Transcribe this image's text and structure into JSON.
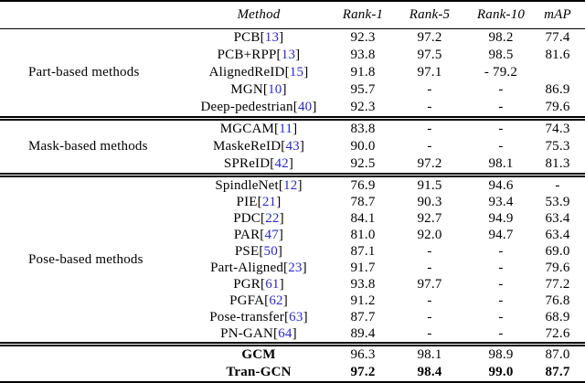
{
  "columns": [
    "Method",
    "Rank-1",
    "Rank-5",
    "Rank-10",
    "mAP"
  ],
  "colors": {
    "citation_link": "#2a2ad2",
    "text": "#000000",
    "background": "#ffffff"
  },
  "groups": [
    {
      "label": "Part-based methods",
      "rows": [
        {
          "method": "PCB",
          "cite": "13",
          "values": [
            "92.3",
            "97.2",
            "98.2",
            "77.4"
          ]
        },
        {
          "method": "PCB+RPP",
          "cite": "13",
          "values": [
            "93.8",
            "97.5",
            "98.5",
            "81.6"
          ]
        },
        {
          "method": "AlignedReID",
          "cite": "15",
          "values": [
            "91.8",
            "97.1",
            "- 79.2",
            ""
          ]
        },
        {
          "method": "MGN",
          "cite": "10",
          "values": [
            "95.7",
            "-",
            "-",
            "86.9"
          ]
        },
        {
          "method": "Deep-pedestrian",
          "cite": "40",
          "values": [
            "92.3",
            "-",
            "-",
            "79.6"
          ]
        }
      ]
    },
    {
      "label": "Mask-based methods",
      "rows": [
        {
          "method": "MGCAM",
          "cite": "11",
          "values": [
            "83.8",
            "-",
            "-",
            "74.3"
          ]
        },
        {
          "method": "MaskeReID",
          "cite": "43",
          "values": [
            "90.0",
            "-",
            "-",
            "75.3"
          ]
        },
        {
          "method": "SPReID",
          "cite": "42",
          "values": [
            "92.5",
            "97.2",
            "98.1",
            "81.3"
          ]
        }
      ]
    },
    {
      "label": "Pose-based methods",
      "rows": [
        {
          "method": "SpindleNet",
          "cite": "12",
          "values": [
            "76.9",
            "91.5",
            "94.6",
            "-"
          ]
        },
        {
          "method": "PIE",
          "cite": "21",
          "values": [
            "78.7",
            "90.3",
            "93.4",
            "53.9"
          ]
        },
        {
          "method": "PDC",
          "cite": "22",
          "values": [
            "84.1",
            "92.7",
            "94.9",
            "63.4"
          ]
        },
        {
          "method": "PAR",
          "cite": "47",
          "values": [
            "81.0",
            "92.0",
            "94.7",
            "63.4"
          ]
        },
        {
          "method": "PSE",
          "cite": "50",
          "values": [
            "87.1",
            "-",
            "-",
            "69.0"
          ]
        },
        {
          "method": "Part-Aligned",
          "cite": "23",
          "values": [
            "91.7",
            "-",
            "-",
            "79.6"
          ]
        },
        {
          "method": "PGR",
          "cite": "61",
          "values": [
            "93.8",
            "97.7",
            "-",
            "77.2"
          ]
        },
        {
          "method": "PGFA",
          "cite": "62",
          "values": [
            "91.2",
            "-",
            "-",
            "76.8"
          ]
        },
        {
          "method": "Pose-transfer",
          "cite": "63",
          "values": [
            "87.7",
            "-",
            "-",
            "68.9"
          ]
        },
        {
          "method": "PN-GAN",
          "cite": "64",
          "values": [
            "89.4",
            "-",
            "-",
            "72.6"
          ]
        }
      ]
    },
    {
      "label": "",
      "rows": [
        {
          "method": "GCM",
          "cite": null,
          "bold_method": true,
          "bold_values": false,
          "values": [
            "96.3",
            "98.1",
            "98.9",
            "87.0"
          ]
        },
        {
          "method": "Tran-GCN",
          "cite": null,
          "bold_method": true,
          "bold_values": true,
          "values": [
            "97.2",
            "98.4",
            "99.0",
            "87.7"
          ]
        }
      ]
    }
  ]
}
